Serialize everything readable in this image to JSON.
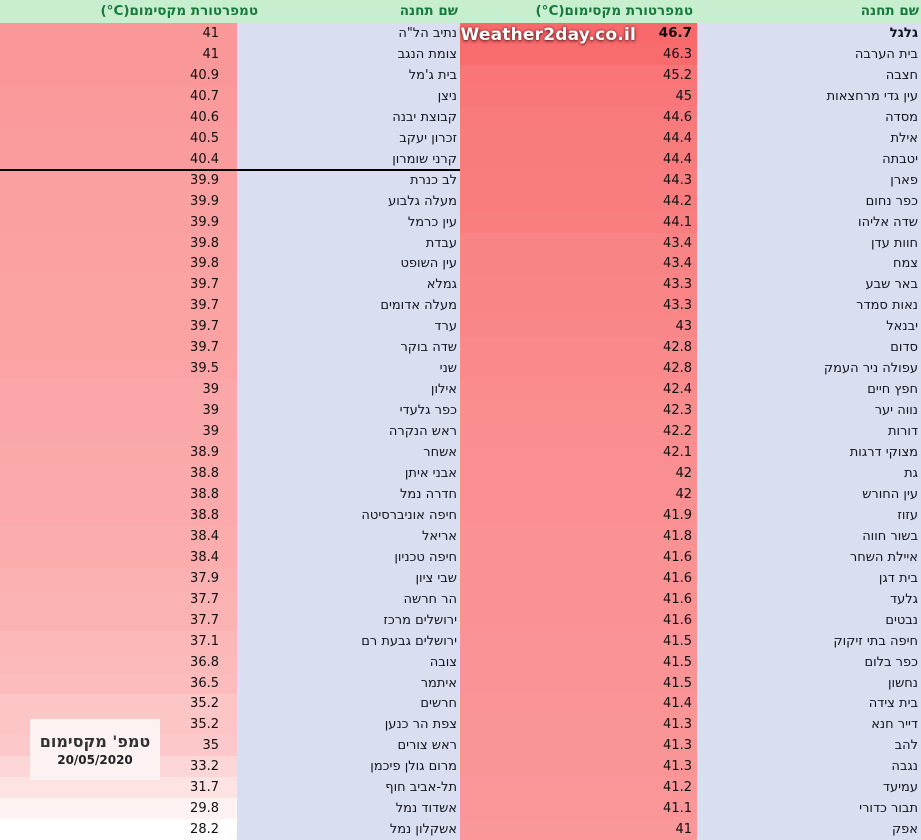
{
  "header": {
    "station_label": "שם תחנה",
    "temp_label": "טמפרטורת מקסימום(C°)"
  },
  "watermark": {
    "text": "Weather2day.co.il"
  },
  "annotation_box": {
    "title": "טמפ' מקסימום",
    "date": "20/05/2020"
  },
  "colors": {
    "header_bg": "#c7eecf",
    "header_text": "#17793a",
    "station_bg": "#d9def1",
    "scale_max": "#f8696b",
    "scale_min": "#ffffff",
    "annotation_bg": "#fdf2f2",
    "threshold_line": "#000000",
    "watermark_text": "#ffffff"
  },
  "scale": {
    "min": 28.2,
    "max": 46.7
  },
  "right_table": {
    "rows": [
      {
        "name": "גלגל",
        "temp": "46.7",
        "bold": true
      },
      {
        "name": "בית הערבה",
        "temp": "46.3"
      },
      {
        "name": "חצבה",
        "temp": "45.2"
      },
      {
        "name": "עין גדי מרחצאות",
        "temp": "45"
      },
      {
        "name": "מסדה",
        "temp": "44.6"
      },
      {
        "name": "אילת",
        "temp": "44.4"
      },
      {
        "name": "יטבתה",
        "temp": "44.4"
      },
      {
        "name": "פארן",
        "temp": "44.3"
      },
      {
        "name": "כפר נחום",
        "temp": "44.2"
      },
      {
        "name": "שדה אליהו",
        "temp": "44.1"
      },
      {
        "name": "חוות עדן",
        "temp": "43.4"
      },
      {
        "name": "צמח",
        "temp": "43.4"
      },
      {
        "name": "באר שבע",
        "temp": "43.3"
      },
      {
        "name": "נאות סמדר",
        "temp": "43.3"
      },
      {
        "name": "יבנאל",
        "temp": "43"
      },
      {
        "name": "סדום",
        "temp": "42.8"
      },
      {
        "name": "עפולה ניר העמק",
        "temp": "42.8"
      },
      {
        "name": "חפץ חיים",
        "temp": "42.4"
      },
      {
        "name": "נווה יער",
        "temp": "42.3"
      },
      {
        "name": "דורות",
        "temp": "42.2"
      },
      {
        "name": "מצוקי דרגות",
        "temp": "42.1"
      },
      {
        "name": "גת",
        "temp": "42"
      },
      {
        "name": "עין החורש",
        "temp": "42"
      },
      {
        "name": "עזוז",
        "temp": "41.9"
      },
      {
        "name": "בשור חווה",
        "temp": "41.8"
      },
      {
        "name": "איילת השחר",
        "temp": "41.6"
      },
      {
        "name": "בית דגן",
        "temp": "41.6"
      },
      {
        "name": "גלעד",
        "temp": "41.6"
      },
      {
        "name": "נבטים",
        "temp": "41.6"
      },
      {
        "name": "חיפה בתי זיקוק",
        "temp": "41.5"
      },
      {
        "name": "כפר בלום",
        "temp": "41.5"
      },
      {
        "name": "נחשון",
        "temp": "41.5"
      },
      {
        "name": "בית צידה",
        "temp": "41.4"
      },
      {
        "name": "דייר חנא",
        "temp": "41.3"
      },
      {
        "name": "להב",
        "temp": "41.3"
      },
      {
        "name": "נגבה",
        "temp": "41.3"
      },
      {
        "name": "עמיעד",
        "temp": "41.2"
      },
      {
        "name": "תבור כדורי",
        "temp": "41.1"
      },
      {
        "name": "אפק",
        "temp": "41"
      }
    ]
  },
  "left_table": {
    "threshold_line_after_value": "40.4",
    "rows": [
      {
        "name": "נתיב הל\"ה",
        "temp": "41"
      },
      {
        "name": "צומת הנגב",
        "temp": "41"
      },
      {
        "name": "בית ג'מל",
        "temp": "40.9"
      },
      {
        "name": "ניצן",
        "temp": "40.7"
      },
      {
        "name": "קבוצת יבנה",
        "temp": "40.6"
      },
      {
        "name": "זכרון יעקב",
        "temp": "40.5"
      },
      {
        "name": "קרני שומרון",
        "temp": "40.4"
      },
      {
        "name": "לב כנרת",
        "temp": "39.9"
      },
      {
        "name": "מעלה גלבוע",
        "temp": "39.9"
      },
      {
        "name": "עין כרמל",
        "temp": "39.9"
      },
      {
        "name": "עבדת",
        "temp": "39.8"
      },
      {
        "name": "עין השופט",
        "temp": "39.8"
      },
      {
        "name": "גמלא",
        "temp": "39.7"
      },
      {
        "name": "מעלה אדומים",
        "temp": "39.7"
      },
      {
        "name": "ערד",
        "temp": "39.7"
      },
      {
        "name": "שדה בוקר",
        "temp": "39.7"
      },
      {
        "name": "שני",
        "temp": "39.5"
      },
      {
        "name": "אילון",
        "temp": "39"
      },
      {
        "name": "כפר גלעדי",
        "temp": "39"
      },
      {
        "name": "ראש הנקרה",
        "temp": "39"
      },
      {
        "name": "אשחר",
        "temp": "38.9"
      },
      {
        "name": "אבני איתן",
        "temp": "38.8"
      },
      {
        "name": "חדרה נמל",
        "temp": "38.8"
      },
      {
        "name": "חיפה אוניברסיטה",
        "temp": "38.8"
      },
      {
        "name": "אריאל",
        "temp": "38.4"
      },
      {
        "name": "חיפה טכניון",
        "temp": "38.4"
      },
      {
        "name": "שבי ציון",
        "temp": "37.9"
      },
      {
        "name": "הר חרשה",
        "temp": "37.7"
      },
      {
        "name": "ירושלים מרכז",
        "temp": "37.7"
      },
      {
        "name": "ירושלים גבעת רם",
        "temp": "37.1"
      },
      {
        "name": "צובה",
        "temp": "36.8"
      },
      {
        "name": "איתמר",
        "temp": "36.5"
      },
      {
        "name": "חרשים",
        "temp": "35.2"
      },
      {
        "name": "צפת הר כנען",
        "temp": "35.2"
      },
      {
        "name": "ראש צורים",
        "temp": "35"
      },
      {
        "name": "מרום גולן פיכמן",
        "temp": "33.2"
      },
      {
        "name": "תל-אביב חוף",
        "temp": "31.7"
      },
      {
        "name": "אשדוד נמל",
        "temp": "29.8"
      },
      {
        "name": "אשקלון נמל",
        "temp": "28.2"
      }
    ]
  }
}
